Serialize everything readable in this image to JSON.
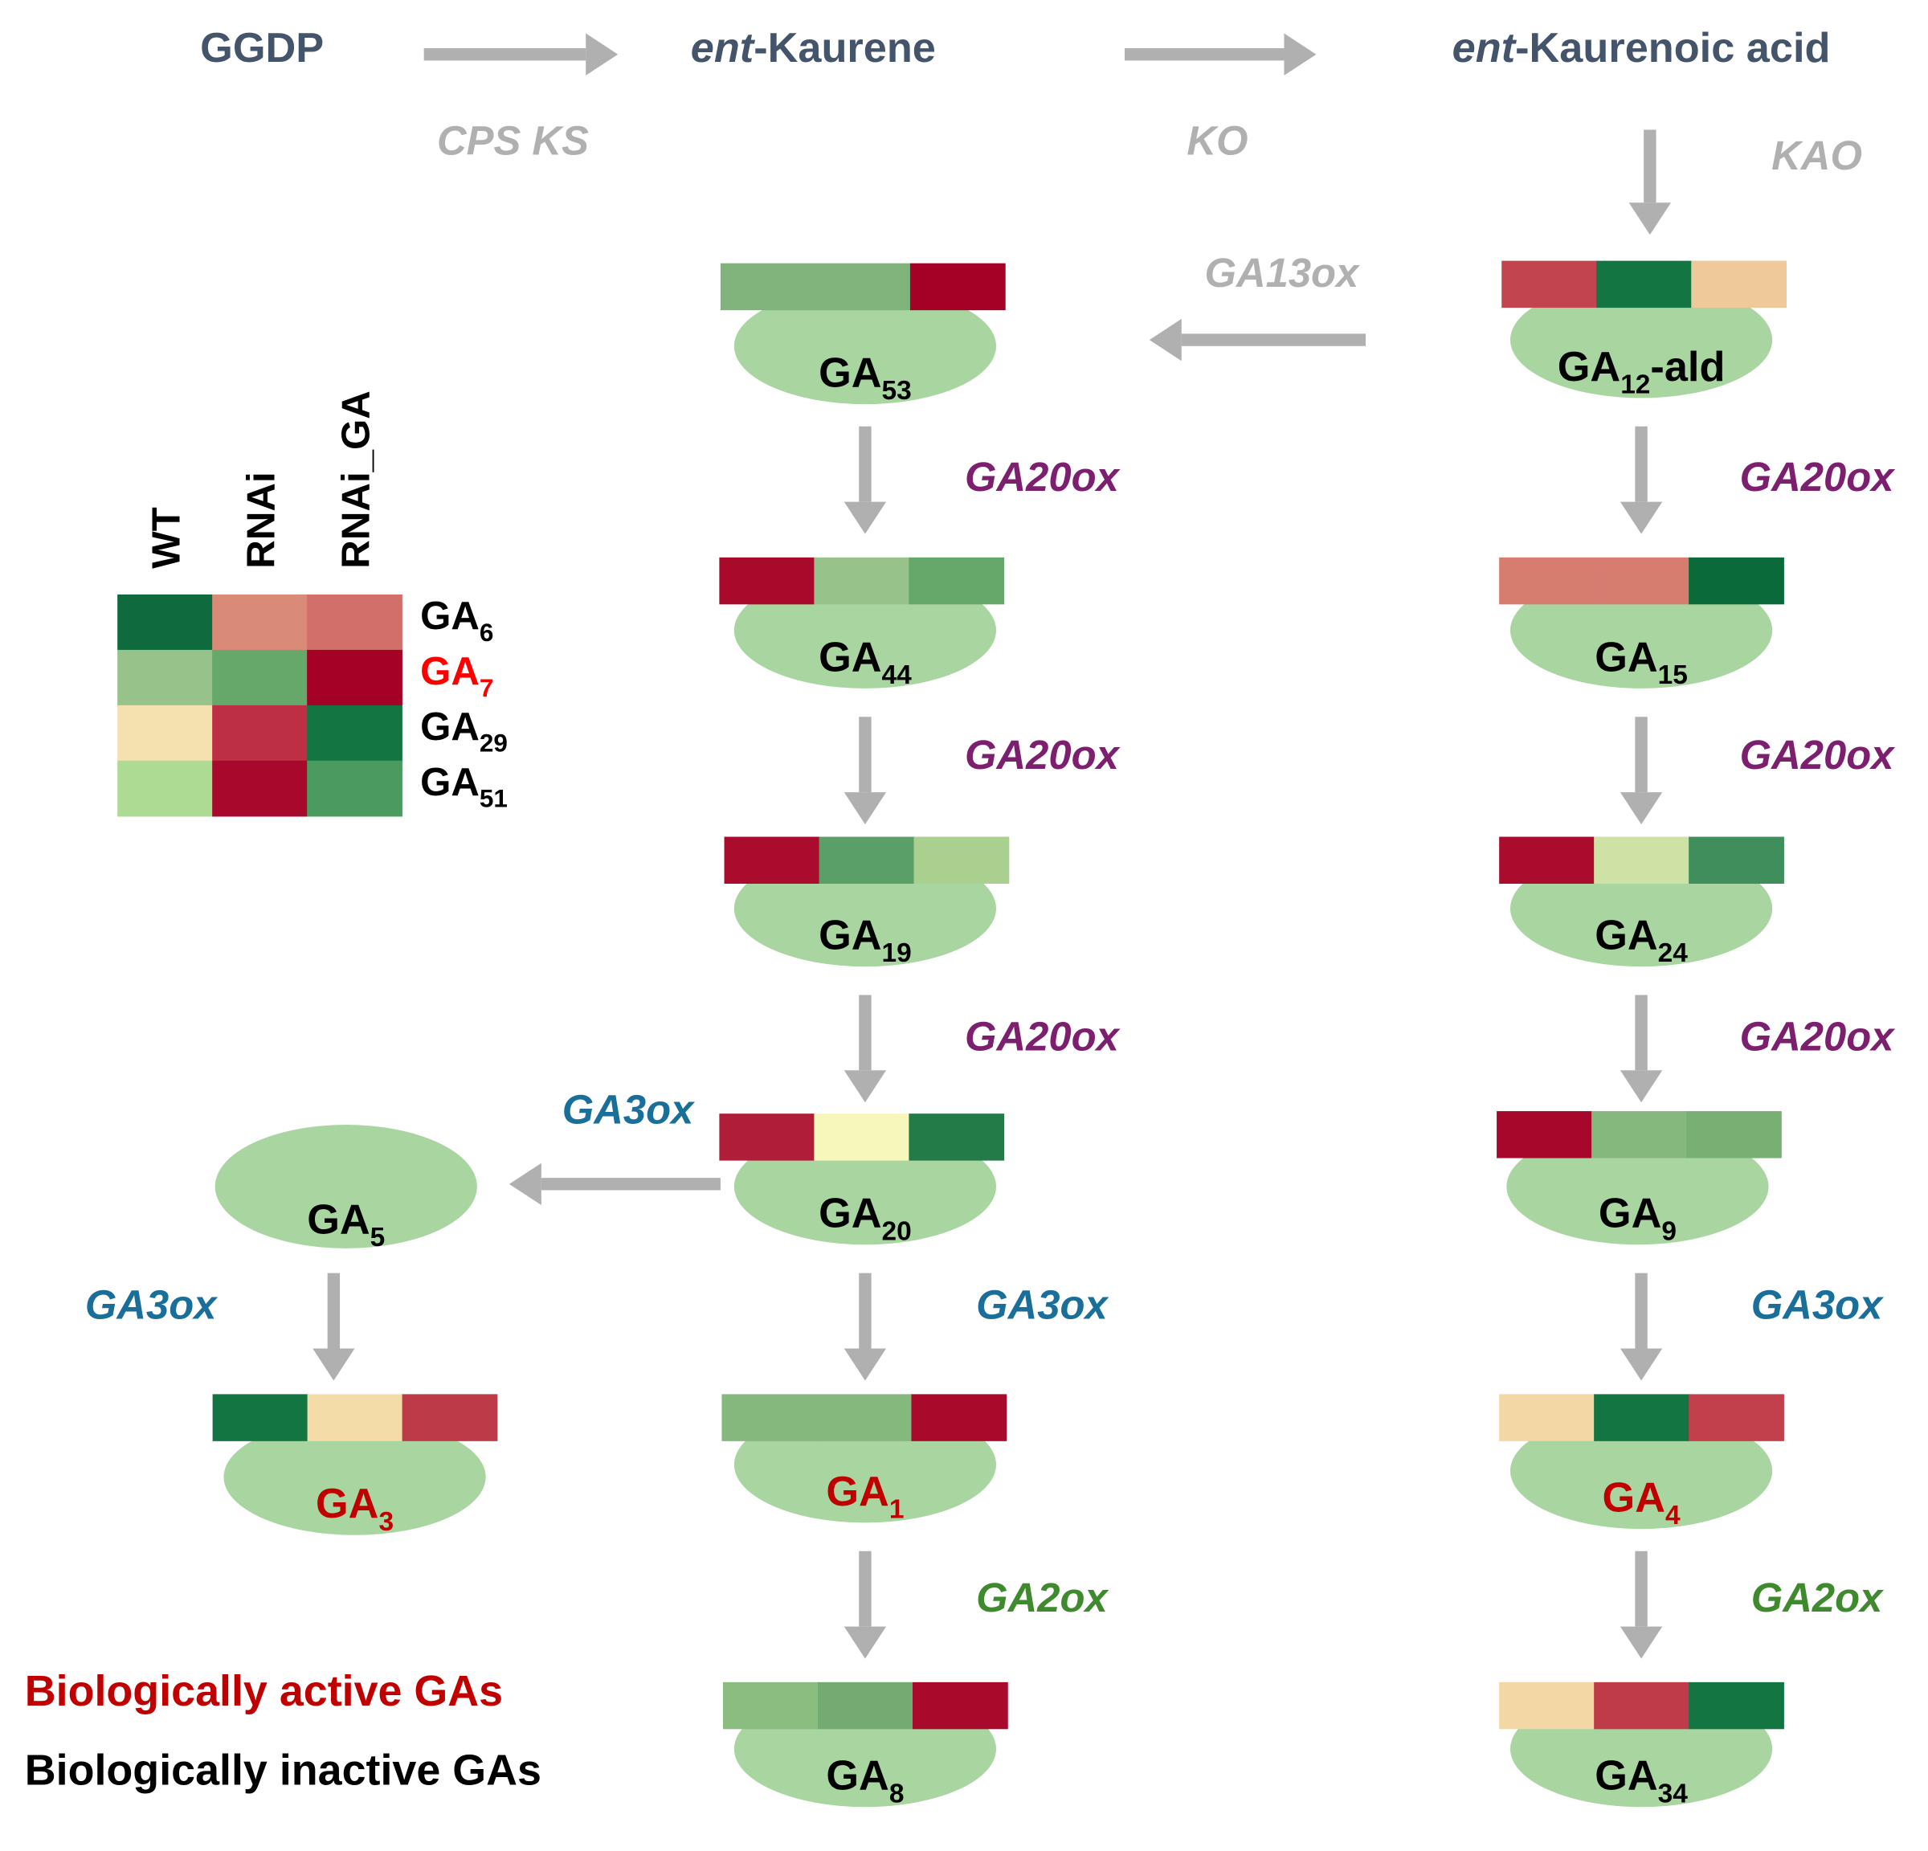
{
  "pathway": {
    "start": "GGDP",
    "kaurene": {
      "prefix": "ent",
      "text": "-Kaurene"
    },
    "acid": {
      "prefix": "ent",
      "text": "-Kaurenoic acid"
    },
    "enzymes": {
      "cps_ks": "CPS  KS",
      "ko": "KO",
      "kao": "KAO",
      "ga13ox": "GA13ox"
    }
  },
  "nodes": [
    {
      "base": "GA",
      "sub": "53",
      "label_color": "#000000",
      "cells": [
        "#80b47c",
        "#80b47c",
        "#a50026"
      ]
    },
    {
      "base": "GA",
      "sub": "12",
      "suffix": "-ald",
      "label_color": "#000000",
      "cells": [
        "#c1444e",
        "#137542",
        "#f0c99a"
      ]
    },
    {
      "base": "GA",
      "sub": "44",
      "label_color": "#000000",
      "cells": [
        "#a80a2c",
        "#97c38a",
        "#66a86a"
      ]
    },
    {
      "base": "GA",
      "sub": "15",
      "label_color": "#000000",
      "cells": [
        "#d67d70",
        "#d67d70",
        "#0a6a3a"
      ]
    },
    {
      "base": "GA",
      "sub": "19",
      "label_color": "#000000",
      "cells": [
        "#aa0c2e",
        "#5a9f68",
        "#a9d08f"
      ]
    },
    {
      "base": "GA",
      "sub": "24",
      "label_color": "#000000",
      "cells": [
        "#aa0c2e",
        "#cfe2a5",
        "#3f8e5c"
      ]
    },
    {
      "base": "GA",
      "sub": "20",
      "label_color": "#000000",
      "cells": [
        "#b01d38",
        "#f7f7bc",
        "#237b48"
      ]
    },
    {
      "base": "GA",
      "sub": "9",
      "label_color": "#000000",
      "cells": [
        "#a6082c",
        "#84b87c",
        "#78b074"
      ]
    },
    {
      "base": "GA",
      "sub": "5",
      "label_color": "#000000"
    },
    {
      "base": "GA",
      "sub": "3",
      "label_color": "#c00000",
      "cells": [
        "#137542",
        "#f3dca8",
        "#bd3b48"
      ]
    },
    {
      "base": "GA",
      "sub": "1",
      "label_color": "#c00000",
      "cells": [
        "#84b87c",
        "#84b87c",
        "#a80a2c"
      ]
    },
    {
      "base": "GA",
      "sub": "4",
      "label_color": "#c00000",
      "cells": [
        "#f3d7a5",
        "#137542",
        "#c2404b"
      ]
    },
    {
      "base": "GA",
      "sub": "8",
      "label_color": "#000000",
      "cells": [
        "#8bbd80",
        "#73ab73",
        "#a80a2c"
      ]
    },
    {
      "base": "GA",
      "sub": "34",
      "label_color": "#000000",
      "cells": [
        "#f3d7a5",
        "#bf3b4a",
        "#137542"
      ]
    }
  ],
  "enzyme_labels": [
    {
      "text": "GA20ox",
      "color": "#7b1f6e"
    },
    {
      "text": "GA20ox",
      "color": "#7b1f6e"
    },
    {
      "text": "GA20ox",
      "color": "#7b1f6e"
    },
    {
      "text": "GA20ox",
      "color": "#7b1f6e"
    },
    {
      "text": "GA20ox",
      "color": "#7b1f6e"
    },
    {
      "text": "GA20ox",
      "color": "#7b1f6e"
    },
    {
      "text": "GA3ox",
      "color": "#1a6f9a"
    },
    {
      "text": "GA3ox",
      "color": "#1a6f9a"
    },
    {
      "text": "GA3ox",
      "color": "#1a6f9a"
    },
    {
      "text": "GA3ox",
      "color": "#1a6f9a"
    },
    {
      "text": "GA2ox",
      "color": "#3f8a2e"
    },
    {
      "text": "GA2ox",
      "color": "#3f8a2e"
    }
  ],
  "heatmap": {
    "columns": [
      "WT",
      "RNAi",
      "RNAi_GA"
    ],
    "rows": [
      {
        "base": "GA",
        "sub": "6",
        "label_color": "#000000",
        "cells": [
          "#0f6b3d",
          "#d98b78",
          "#d36f6a"
        ]
      },
      {
        "base": "GA",
        "sub": "7",
        "label_color": "#ff0000",
        "cells": [
          "#97c38a",
          "#66a86a",
          "#a50026"
        ]
      },
      {
        "base": "GA",
        "sub": "29",
        "label_color": "#000000",
        "cells": [
          "#f5e0b0",
          "#bd2f42",
          "#137542"
        ]
      },
      {
        "base": "GA",
        "sub": "51",
        "label_color": "#000000",
        "cells": [
          "#addb94",
          "#a8082c",
          "#4b9a60"
        ]
      }
    ]
  },
  "legend": {
    "active": "Biologically active GAs",
    "inactive": "Biologically inactive GAs",
    "active_color": "#c00000",
    "inactive_color": "#000000"
  }
}
